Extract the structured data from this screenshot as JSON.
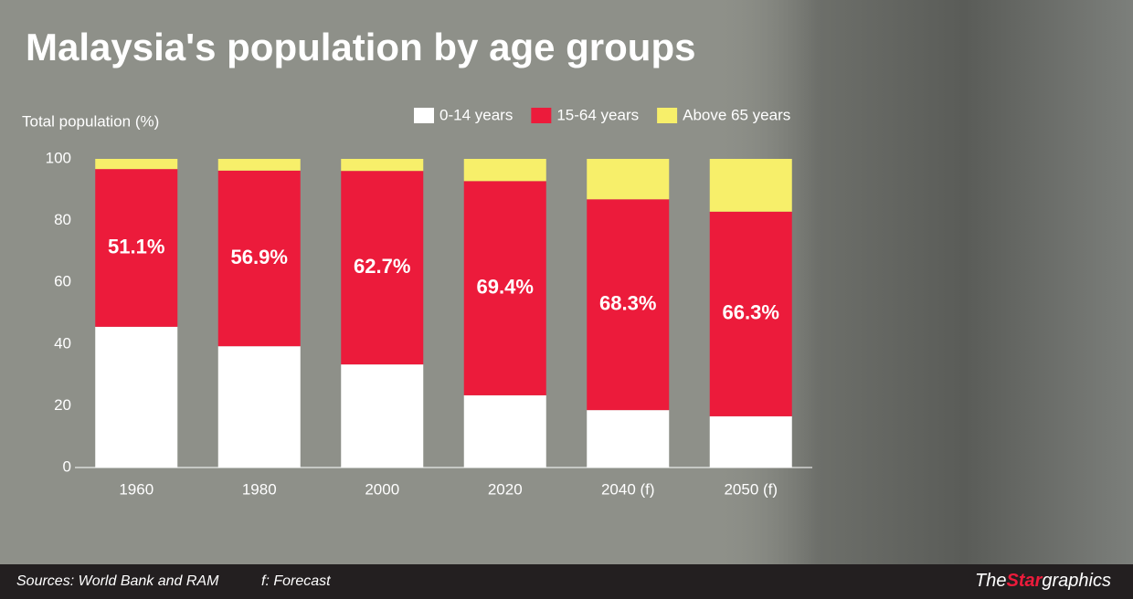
{
  "chart_data": {
    "type": "stacked_bar",
    "title": "Malaysia's population by age groups",
    "y_label": "Total population (%)",
    "categories": [
      "1960",
      "1980",
      "2000",
      "2020",
      "2040 (f)",
      "2050 (f)"
    ],
    "series": [
      {
        "name": "0-14 years",
        "color": "#ffffff",
        "values": [
          45.6,
          39.3,
          33.4,
          23.4,
          18.6,
          16.6
        ]
      },
      {
        "name": "15-64 years",
        "color": "#ec1b3b",
        "values": [
          51.1,
          56.9,
          62.7,
          69.4,
          68.3,
          66.3
        ],
        "value_labels": [
          "51.1%",
          "56.9%",
          "62.7%",
          "69.4%",
          "68.3%",
          "66.3%"
        ]
      },
      {
        "name": "Above 65 years",
        "color": "#f7ef6a",
        "values": [
          3.3,
          3.8,
          3.9,
          7.2,
          13.1,
          17.1
        ]
      }
    ],
    "ylim": [
      0,
      100
    ],
    "yticks": [
      0,
      20,
      40,
      60,
      80,
      100
    ],
    "grid": false,
    "legend": "top-right"
  },
  "footer": {
    "sources": "Sources: World Bank and RAM",
    "note": "f: Forecast",
    "logo": {
      "the": "The",
      "star": "Star",
      "graphics": "graphics"
    }
  }
}
